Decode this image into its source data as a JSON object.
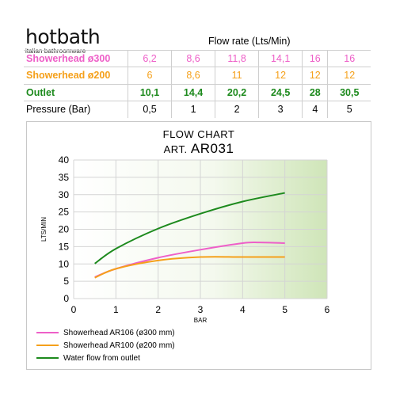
{
  "brand": {
    "name": "hotbath",
    "tagline": "italian bathroomware"
  },
  "table": {
    "header": "Flow rate (Lts/Min)",
    "rows": [
      {
        "label": "Showerhead ø300",
        "color": "#ee5fc8",
        "values": [
          "6,2",
          "8,6",
          "11,8",
          "14,1",
          "16",
          "16"
        ]
      },
      {
        "label": "Showerhead ø200",
        "color": "#f5a01a",
        "values": [
          "6",
          "8,6",
          "11",
          "12",
          "12",
          "12"
        ]
      },
      {
        "label": "Outlet",
        "color": "#1d8a1d",
        "values": [
          "10,1",
          "14,4",
          "20,2",
          "24,5",
          "28",
          "30,5"
        ]
      },
      {
        "label": "Pressure (Bar)",
        "color": "#000000",
        "values": [
          "0,5",
          "1",
          "2",
          "3",
          "4",
          "5"
        ]
      }
    ]
  },
  "chart_data": {
    "type": "line",
    "title": "FLOW CHART",
    "subtitle_prefix": "ART.",
    "subtitle_code": "AR031",
    "xlabel": "BAR",
    "ylabel": "LTS/MIN",
    "xlim": [
      0,
      6
    ],
    "ylim": [
      0,
      40
    ],
    "x_ticks": [
      "0",
      "1",
      "2",
      "3",
      "4",
      "5",
      "6"
    ],
    "y_ticks": [
      "0",
      "5",
      "10",
      "15",
      "20",
      "25",
      "30",
      "35",
      "40"
    ],
    "grid": true,
    "legend_position": "bottom-left",
    "series": [
      {
        "name": "Showerhead AR106 (ø300 mm)",
        "color": "#ee5fc8",
        "x": [
          0.5,
          1,
          2,
          3,
          4,
          4.4,
          5
        ],
        "y": [
          6.2,
          8.6,
          11.8,
          14.1,
          16,
          16.2,
          16
        ]
      },
      {
        "name": "Showerhead AR100 (ø200 mm)",
        "color": "#f5a01a",
        "x": [
          0.5,
          1,
          2,
          3,
          4,
          5
        ],
        "y": [
          6,
          8.6,
          11,
          12,
          12,
          12
        ]
      },
      {
        "name": "Water flow from outlet",
        "color": "#1d8a1d",
        "x": [
          0.5,
          1,
          2,
          3,
          4,
          5
        ],
        "y": [
          10.1,
          14.4,
          20.2,
          24.5,
          28,
          30.5
        ]
      }
    ]
  }
}
